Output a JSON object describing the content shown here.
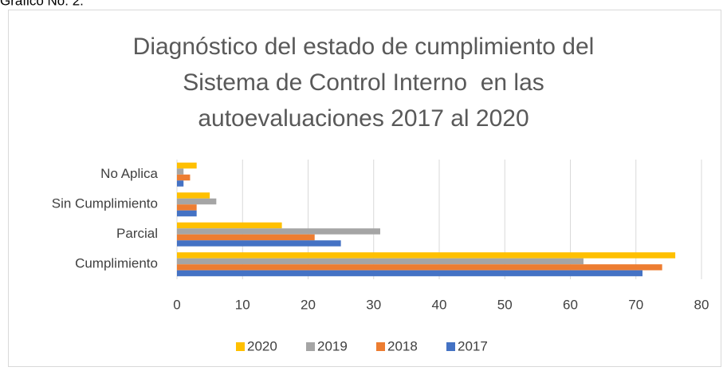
{
  "caption": "Gráfico No. 2.",
  "chart_data": {
    "type": "hbar",
    "title": [
      "Diagnóstico del estado de cumplimiento del",
      "Sistema de Control Interno  en las",
      "autoevaluaciones 2017 al 2020"
    ],
    "categories": [
      "Cumplimiento",
      "Parcial",
      "Sin Cumplimiento",
      "No Aplica"
    ],
    "series": [
      {
        "name": "2020",
        "color": "#ffc000",
        "values": [
          76,
          16,
          5,
          3
        ]
      },
      {
        "name": "2019",
        "color": "#a5a5a5",
        "values": [
          62,
          31,
          6,
          1
        ]
      },
      {
        "name": "2018",
        "color": "#ed7d31",
        "values": [
          74,
          21,
          3,
          2
        ]
      },
      {
        "name": "2017",
        "color": "#4472c4",
        "values": [
          71,
          25,
          3,
          1
        ]
      }
    ],
    "xlim": [
      0,
      80
    ],
    "xticks": [
      0,
      10,
      20,
      30,
      40,
      50,
      60,
      70,
      80
    ],
    "grid": true,
    "legend": "bottom"
  }
}
